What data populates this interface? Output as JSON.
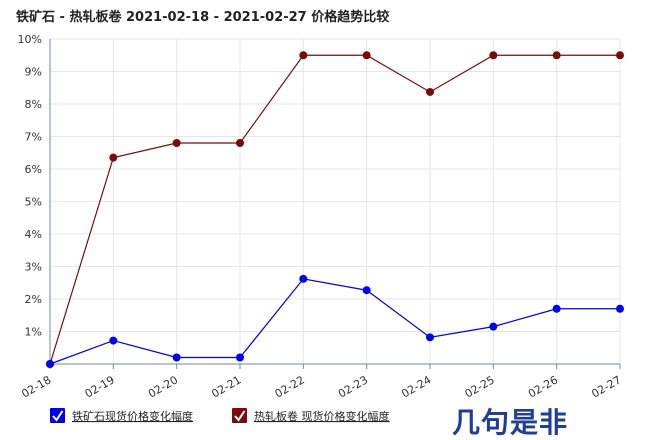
{
  "chart_data": {
    "type": "line",
    "title": "铁矿石 - 热轧板卷 2021-02-18 - 2021-02-27 价格趋势比较",
    "categories": [
      "02-18",
      "02-19",
      "02-20",
      "02-21",
      "02-22",
      "02-23",
      "02-24",
      "02-25",
      "02-26",
      "02-27"
    ],
    "ylim": [
      0,
      10
    ],
    "yticks": [
      1,
      2,
      3,
      4,
      5,
      6,
      7,
      8,
      9,
      10
    ],
    "ytick_labels": [
      "1%",
      "2%",
      "3%",
      "4%",
      "5%",
      "6%",
      "7%",
      "8%",
      "9%",
      "10%"
    ],
    "grid": true,
    "legend_position": "bottom-left",
    "series": [
      {
        "name": "铁矿石现货价格变化幅度",
        "color": "#0000ee",
        "values": [
          0,
          0.72,
          0.2,
          0.2,
          2.62,
          2.27,
          0.82,
          1.15,
          1.7,
          1.7
        ]
      },
      {
        "name": "热轧板卷 现货价格变化幅度",
        "color": "#7a0b0b",
        "values": [
          0,
          6.35,
          6.8,
          6.8,
          9.5,
          9.5,
          8.37,
          9.5,
          9.5,
          9.5
        ]
      }
    ]
  },
  "watermark": {
    "text": "几句是非",
    "color": "#1f3d99"
  }
}
